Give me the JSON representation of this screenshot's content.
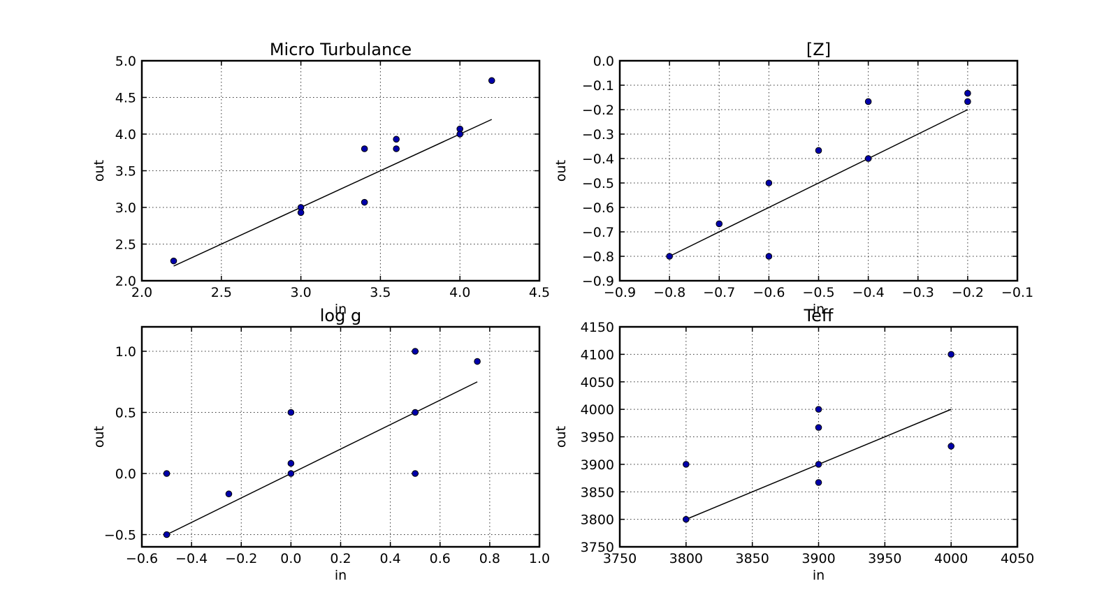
{
  "chart_data": [
    {
      "type": "scatter",
      "title": "Micro Turbulance",
      "xlabel": "in",
      "ylabel": "out",
      "xlim": [
        2.0,
        4.5
      ],
      "ylim": [
        2.0,
        5.0
      ],
      "xticks": [
        "2.0",
        "2.5",
        "3.0",
        "3.5",
        "4.0",
        "4.5"
      ],
      "yticks": [
        "2.0",
        "2.5",
        "3.0",
        "3.5",
        "4.0",
        "4.5",
        "5.0"
      ],
      "grid": true,
      "points": [
        [
          2.2,
          2.27
        ],
        [
          3.0,
          3.0
        ],
        [
          3.0,
          2.93
        ],
        [
          3.4,
          3.8
        ],
        [
          3.4,
          3.07
        ],
        [
          3.6,
          3.93
        ],
        [
          3.6,
          3.8
        ],
        [
          4.0,
          4.07
        ],
        [
          4.0,
          4.0
        ],
        [
          4.2,
          4.73
        ]
      ],
      "fit_line": [
        [
          2.2,
          2.2
        ],
        [
          4.2,
          4.2
        ]
      ]
    },
    {
      "type": "scatter",
      "title": "[Z]",
      "xlabel": "in",
      "ylabel": "out",
      "xlim": [
        -0.9,
        -0.1
      ],
      "ylim": [
        -0.9,
        0.0
      ],
      "xticks": [
        "−0.9",
        "−0.8",
        "−0.7",
        "−0.6",
        "−0.5",
        "−0.4",
        "−0.3",
        "−0.2",
        "−0.1"
      ],
      "yticks": [
        "−0.9",
        "−0.8",
        "−0.7",
        "−0.6",
        "−0.5",
        "−0.4",
        "−0.3",
        "−0.2",
        "−0.1",
        "0.0"
      ],
      "grid": true,
      "points": [
        [
          -0.8,
          -0.8
        ],
        [
          -0.7,
          -0.667
        ],
        [
          -0.6,
          -0.5
        ],
        [
          -0.6,
          -0.8
        ],
        [
          -0.5,
          -0.367
        ],
        [
          -0.4,
          -0.167
        ],
        [
          -0.4,
          -0.4
        ],
        [
          -0.2,
          -0.133
        ],
        [
          -0.2,
          -0.167
        ]
      ],
      "fit_line": [
        [
          -0.8,
          -0.8
        ],
        [
          -0.2,
          -0.2
        ]
      ]
    },
    {
      "type": "scatter",
      "title": "log g",
      "xlabel": "in",
      "ylabel": "out",
      "xlim": [
        -0.6,
        1.0
      ],
      "ylim": [
        -0.6,
        1.2
      ],
      "xticks": [
        "−0.6",
        "−0.4",
        "−0.2",
        "0.0",
        "0.2",
        "0.4",
        "0.6",
        "0.8",
        "1.0"
      ],
      "yticks": [
        "−0.5",
        "0.0",
        "0.5",
        "1.0"
      ],
      "ytick_values": [
        -0.5,
        0.0,
        0.5,
        1.0
      ],
      "grid": true,
      "points": [
        [
          -0.5,
          0.0
        ],
        [
          -0.5,
          -0.5
        ],
        [
          -0.25,
          -0.167
        ],
        [
          0.0,
          0.5
        ],
        [
          0.0,
          0.083
        ],
        [
          0.0,
          0.0
        ],
        [
          0.5,
          1.0
        ],
        [
          0.5,
          0.5
        ],
        [
          0.5,
          0.0
        ],
        [
          0.75,
          0.917
        ]
      ],
      "fit_line": [
        [
          -0.5,
          -0.5
        ],
        [
          0.75,
          0.75
        ]
      ]
    },
    {
      "type": "scatter",
      "title": "Teff",
      "xlabel": "in",
      "ylabel": "out",
      "xlim": [
        3750,
        4050
      ],
      "ylim": [
        3750,
        4150
      ],
      "xticks": [
        "3750",
        "3800",
        "3850",
        "3900",
        "3950",
        "4000",
        "4050"
      ],
      "yticks": [
        "3750",
        "3800",
        "3850",
        "3900",
        "3950",
        "4000",
        "4050",
        "4100",
        "4150"
      ],
      "grid": true,
      "points": [
        [
          3800,
          3900
        ],
        [
          3800,
          3800
        ],
        [
          3900,
          4000
        ],
        [
          3900,
          3967
        ],
        [
          3900,
          3900
        ],
        [
          3900,
          3867
        ],
        [
          4000,
          4100
        ],
        [
          4000,
          3933
        ]
      ],
      "fit_line": [
        [
          3800,
          3800
        ],
        [
          4000,
          4000
        ]
      ]
    }
  ]
}
